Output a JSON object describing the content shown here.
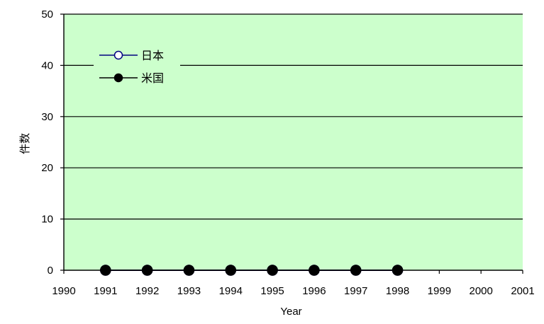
{
  "colors": {
    "plot_background": "#ccffcc",
    "gridline": "#000000",
    "series_japan": "#000080",
    "series_us": "#000000"
  },
  "chart_data": {
    "type": "line",
    "title": "",
    "xlabel": "Year",
    "ylabel": "件数",
    "xlim": [
      1990,
      2001
    ],
    "ylim": [
      0,
      50
    ],
    "x_ticks": [
      1990,
      1991,
      1992,
      1993,
      1994,
      1995,
      1996,
      1997,
      1998,
      1999,
      2000,
      2001
    ],
    "y_ticks": [
      0,
      10,
      20,
      30,
      40,
      50
    ],
    "grid": true,
    "legend_position": "top-left",
    "x": [
      1991,
      1992,
      1993,
      1994,
      1995,
      1996,
      1997,
      1998
    ],
    "series": [
      {
        "name": "日本",
        "marker": "open-circle",
        "color": "#000080",
        "values": [
          0,
          0,
          0,
          0,
          0,
          0,
          0,
          0
        ]
      },
      {
        "name": "米国",
        "marker": "filled-circle",
        "color": "#000000",
        "values": [
          0,
          0,
          0,
          0,
          0,
          0,
          0,
          0
        ]
      }
    ]
  }
}
